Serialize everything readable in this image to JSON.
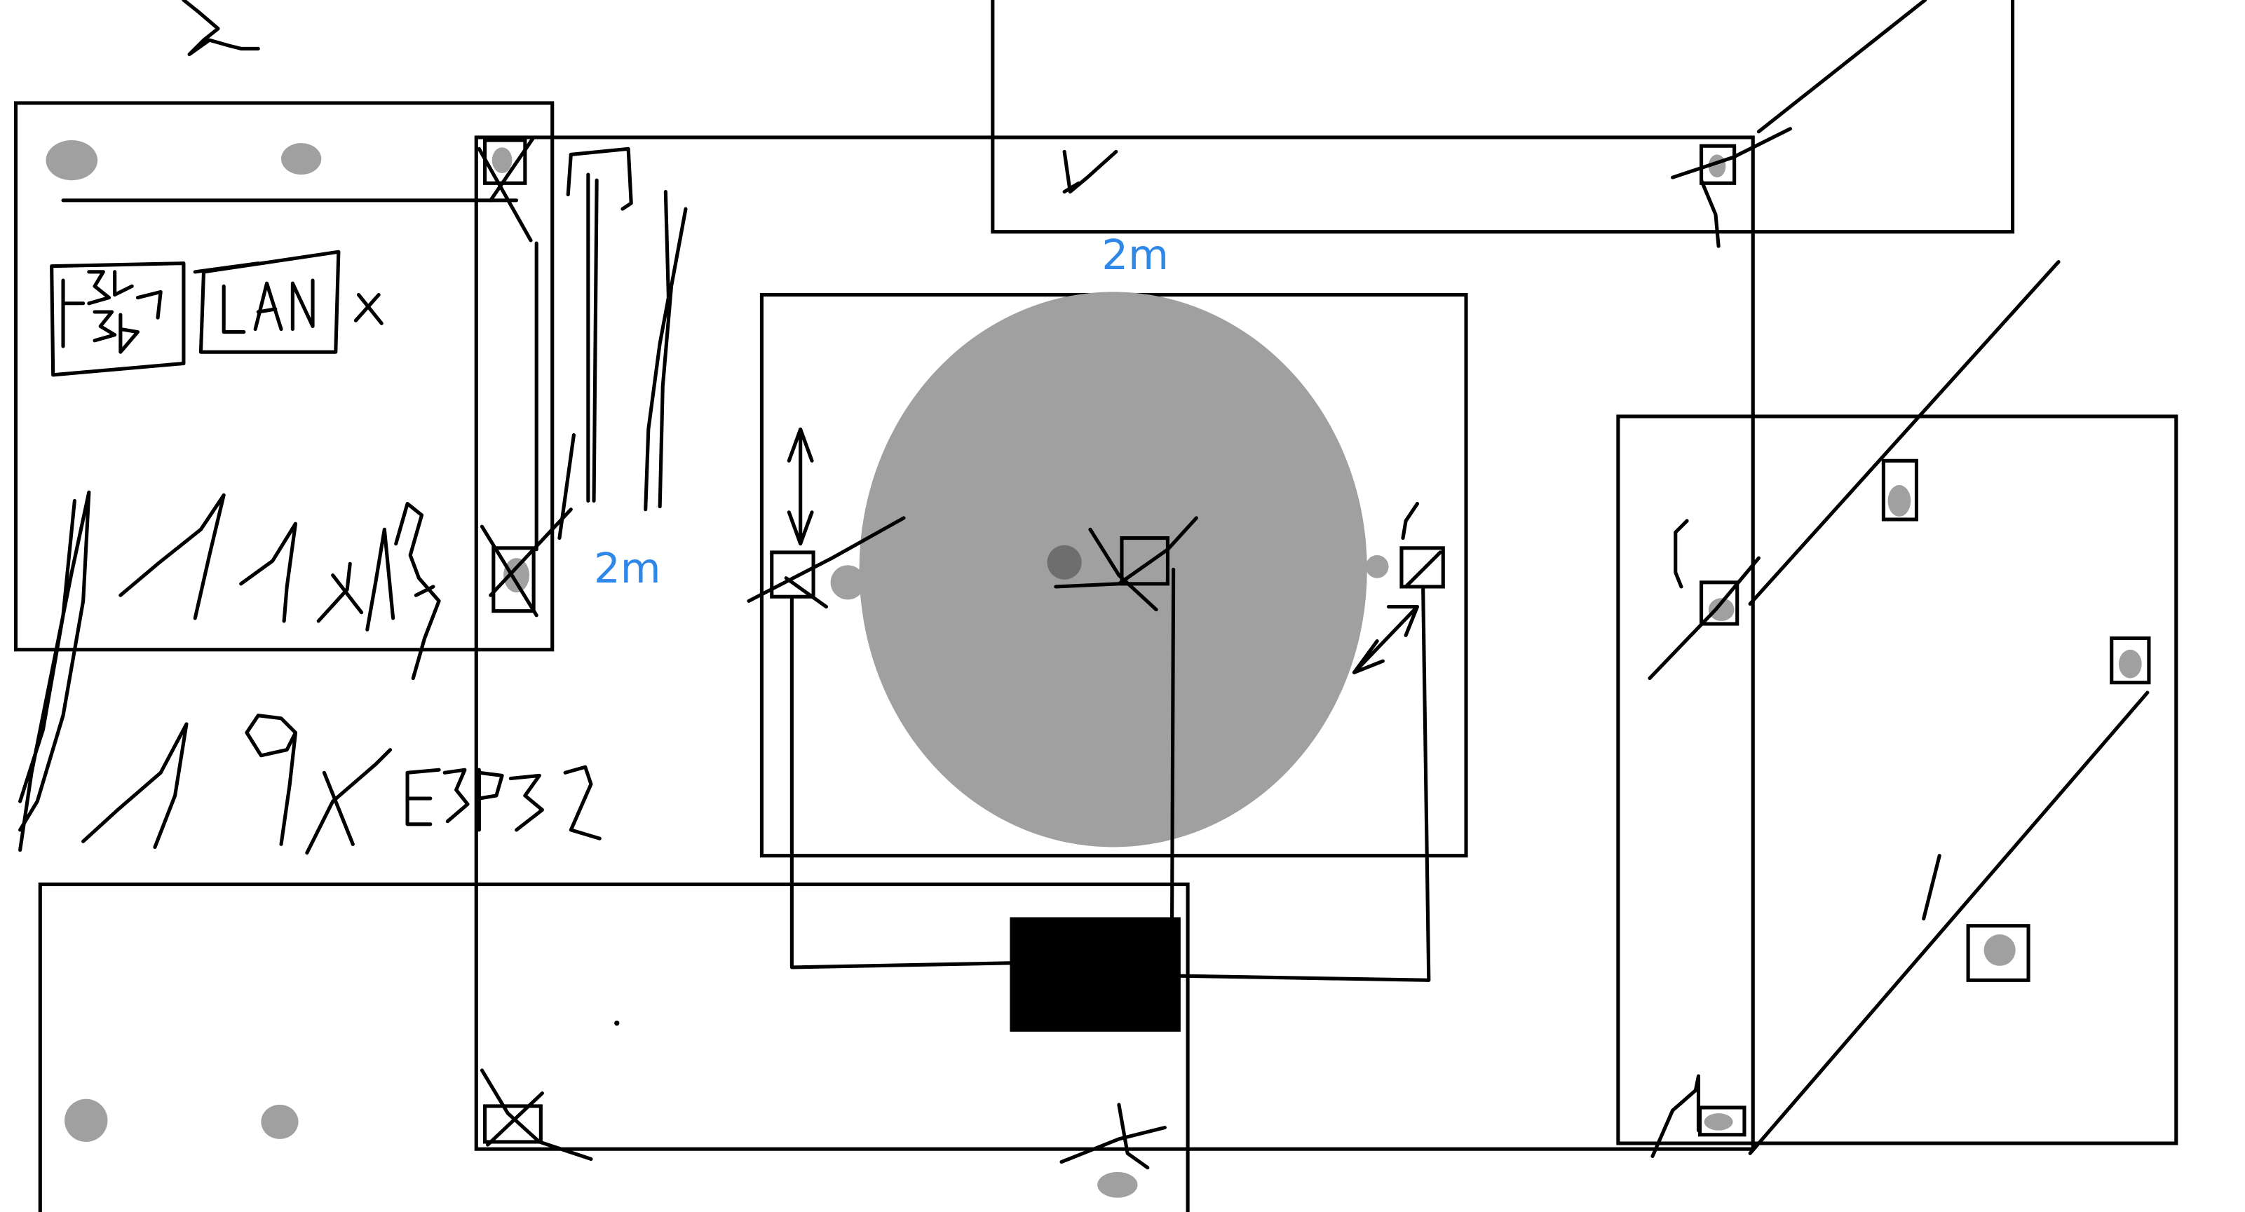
{
  "annotations": {
    "distance_top": "2m",
    "distance_left": "2m"
  },
  "colors": {
    "annotation": "#2f87e8",
    "zone_fill": "#a0a0a0",
    "center_dot": "#6e6e6e",
    "device_fill": "#000000"
  }
}
